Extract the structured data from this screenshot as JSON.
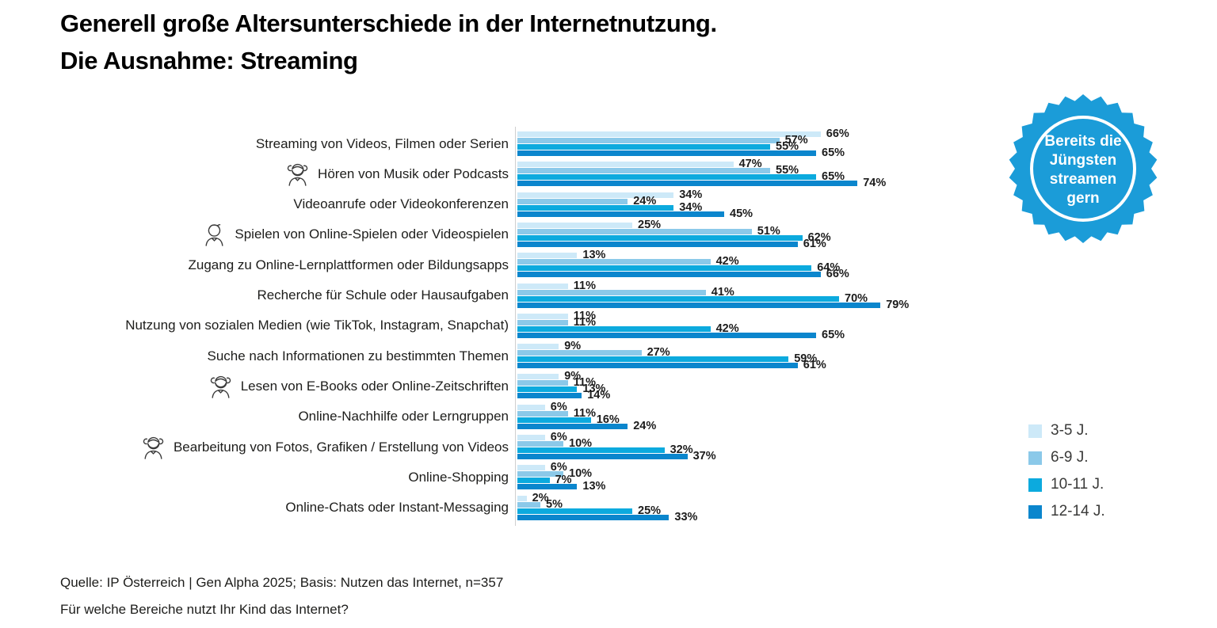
{
  "title": {
    "line1": "Generell große Altersunterschiede in der Internetnutzung.",
    "line2": "Die Ausnahme: Streaming"
  },
  "badge": {
    "lines": [
      "Bereits die",
      "Jüngsten",
      "streamen",
      "gern"
    ],
    "color": "#1b9cd8"
  },
  "legend": {
    "items": [
      {
        "label": "3-5 J.",
        "color": "#cde9f8"
      },
      {
        "label": "6-9 J.",
        "color": "#8bc9e9"
      },
      {
        "label": "10-11 J.",
        "color": "#0caade"
      },
      {
        "label": "12-14 J.",
        "color": "#0b86cd"
      }
    ]
  },
  "chart_data": {
    "type": "bar",
    "orientation": "horizontal",
    "unit": "%",
    "xlim": [
      0,
      100
    ],
    "grid": false,
    "legend_position": "right",
    "colors": [
      "#cde9f8",
      "#8bc9e9",
      "#0caade",
      "#0b86cd"
    ],
    "categories": [
      "Streaming von Videos, Filmen oder Serien",
      "Hören von Musik oder Podcasts",
      "Videoanrufe oder Videokonferenzen",
      "Spielen von Online-Spielen oder Videospielen",
      "Zugang zu Online-Lernplattformen oder Bildungsapps",
      "Recherche für Schule oder Hausaufgaben",
      "Nutzung von sozialen Medien (wie TikTok, Instagram, Snapchat)",
      "Suche nach Informationen zu bestimmten Themen",
      "Lesen von E-Books oder Online-Zeitschriften",
      "Online-Nachhilfe oder Lerngruppen",
      "Bearbeitung von Fotos, Grafiken / Erstellung von Videos",
      "Online-Shopping",
      "Online-Chats oder Instant-Messaging"
    ],
    "icons": [
      null,
      "girl",
      null,
      "boy",
      null,
      null,
      null,
      null,
      "girl",
      null,
      "girl",
      null,
      null
    ],
    "series": [
      {
        "name": "3-5 J.",
        "values": [
          66,
          47,
          34,
          25,
          13,
          11,
          11,
          9,
          9,
          6,
          6,
          6,
          2
        ]
      },
      {
        "name": "6-9 J.",
        "values": [
          57,
          55,
          24,
          51,
          42,
          41,
          11,
          27,
          11,
          11,
          10,
          10,
          5
        ]
      },
      {
        "name": "10-11 J.",
        "values": [
          55,
          65,
          34,
          62,
          64,
          70,
          42,
          59,
          13,
          16,
          32,
          7,
          25
        ]
      },
      {
        "name": "12-14 J.",
        "values": [
          65,
          74,
          45,
          61,
          66,
          79,
          65,
          61,
          14,
          24,
          37,
          13,
          33
        ]
      }
    ]
  },
  "footer": {
    "source": "Quelle: IP Österreich | Gen Alpha 2025; Basis: Nutzen das Internet, n=357",
    "question": "Für welche Bereiche nutzt Ihr Kind das Internet?"
  }
}
